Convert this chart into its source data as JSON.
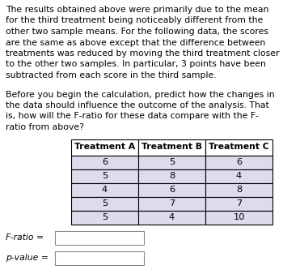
{
  "p1_lines": [
    "The results obtained above were primarily due to the mean",
    "for the third treatment being noticeably different from the",
    "other two sample means. For the following data, the scores",
    "are the same as above except that the difference between",
    "treatments was reduced by moving the third treatment closer",
    "to the other two samples. In particular, 3 points have been",
    "subtracted from each score in the third sample."
  ],
  "p2_lines": [
    "Before you begin the calculation, predict how the changes in",
    "the data should influence the outcome of the analysis. That",
    "is, how will the F-ratio for these data compare with the F-",
    "ratio from above?"
  ],
  "table_headers": [
    "Treatment A",
    "Treatment B",
    "Treatment C"
  ],
  "table_data": [
    [
      6,
      5,
      6
    ],
    [
      5,
      8,
      4
    ],
    [
      4,
      6,
      8
    ],
    [
      5,
      7,
      7
    ],
    [
      5,
      4,
      10
    ]
  ],
  "label_fratio": "F-ratio =",
  "label_pvalue": "p-value =",
  "bg_color": "#ffffff",
  "text_color": "#000000",
  "cell_bg": "#dcdcec",
  "header_bg": "#ffffff",
  "font_size_body": 7.8,
  "font_size_table": 8.2
}
